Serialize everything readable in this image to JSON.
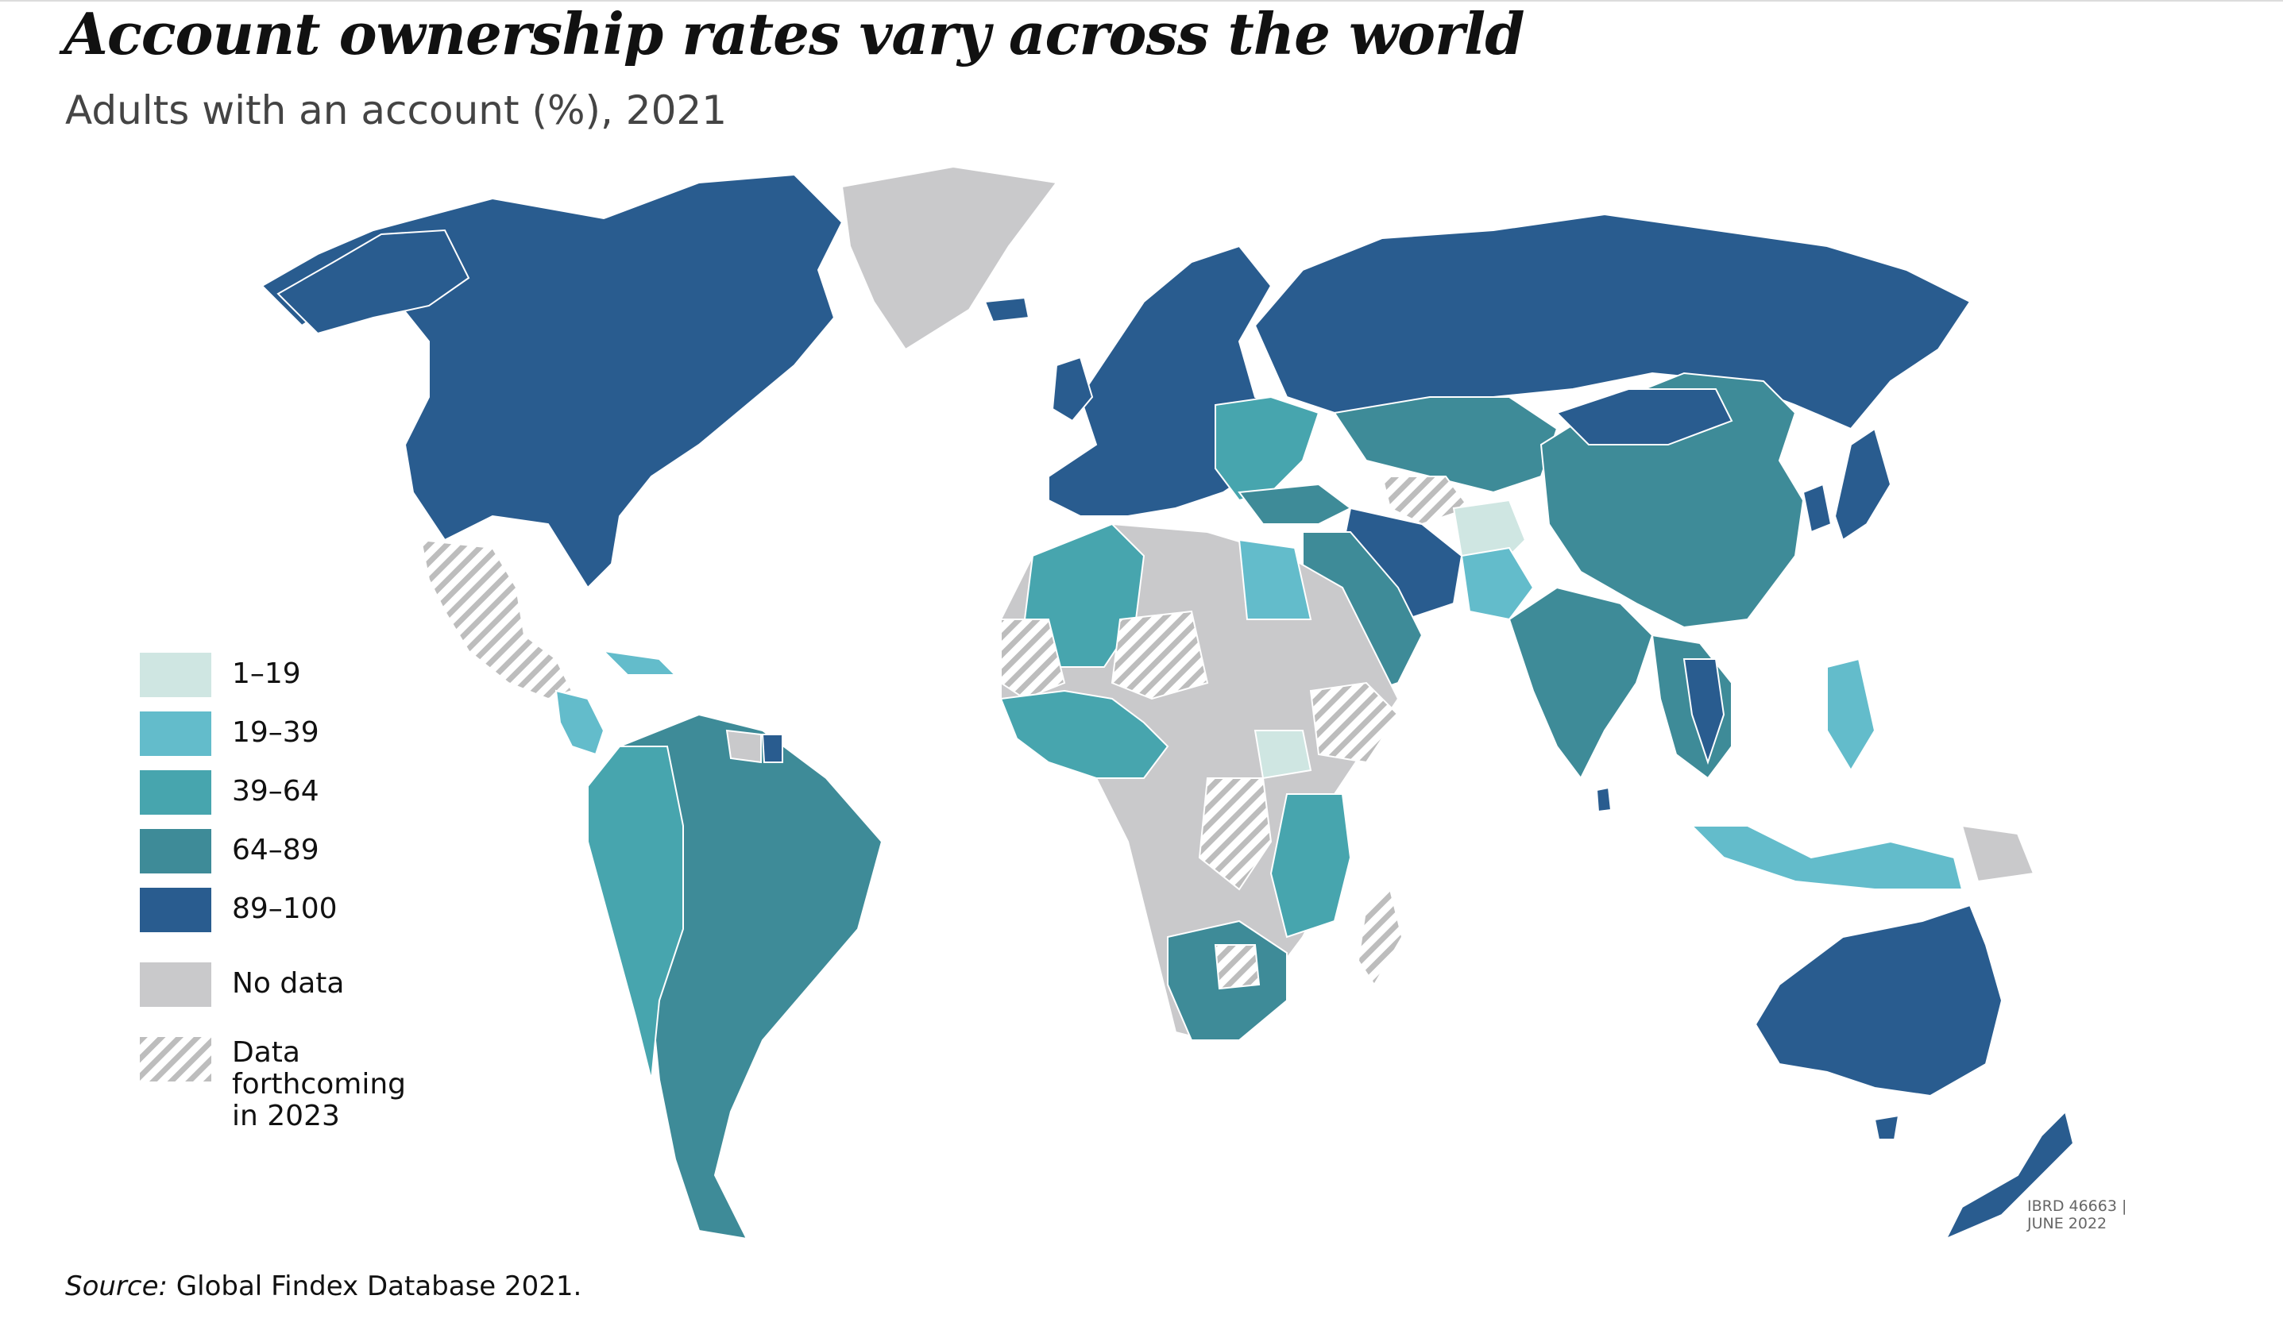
{
  "title": "Account ownership rates vary across the world",
  "subtitle": "Adults with an account (%), 2021",
  "legend": {
    "bin1": "1–19",
    "bin2": "19–39",
    "bin3": "39–64",
    "bin4": "64–89",
    "bin5": "89–100",
    "no_data": "No data",
    "forthcoming": "Data forthcoming in 2023"
  },
  "colors": {
    "bin1": "#cfe6e2",
    "bin2": "#63bccb",
    "bin3": "#47a5ae",
    "bin4": "#3e8b98",
    "bin5": "#295c8f",
    "no_data": "#c9c9cb",
    "forthcoming_stripe": "#bdbdbd"
  },
  "stamp": {
    "line1": "IBRD 46663 |",
    "line2": "JUNE 2022"
  },
  "source": {
    "label": "Source:",
    "text": "Global Findex Database 2021."
  }
}
